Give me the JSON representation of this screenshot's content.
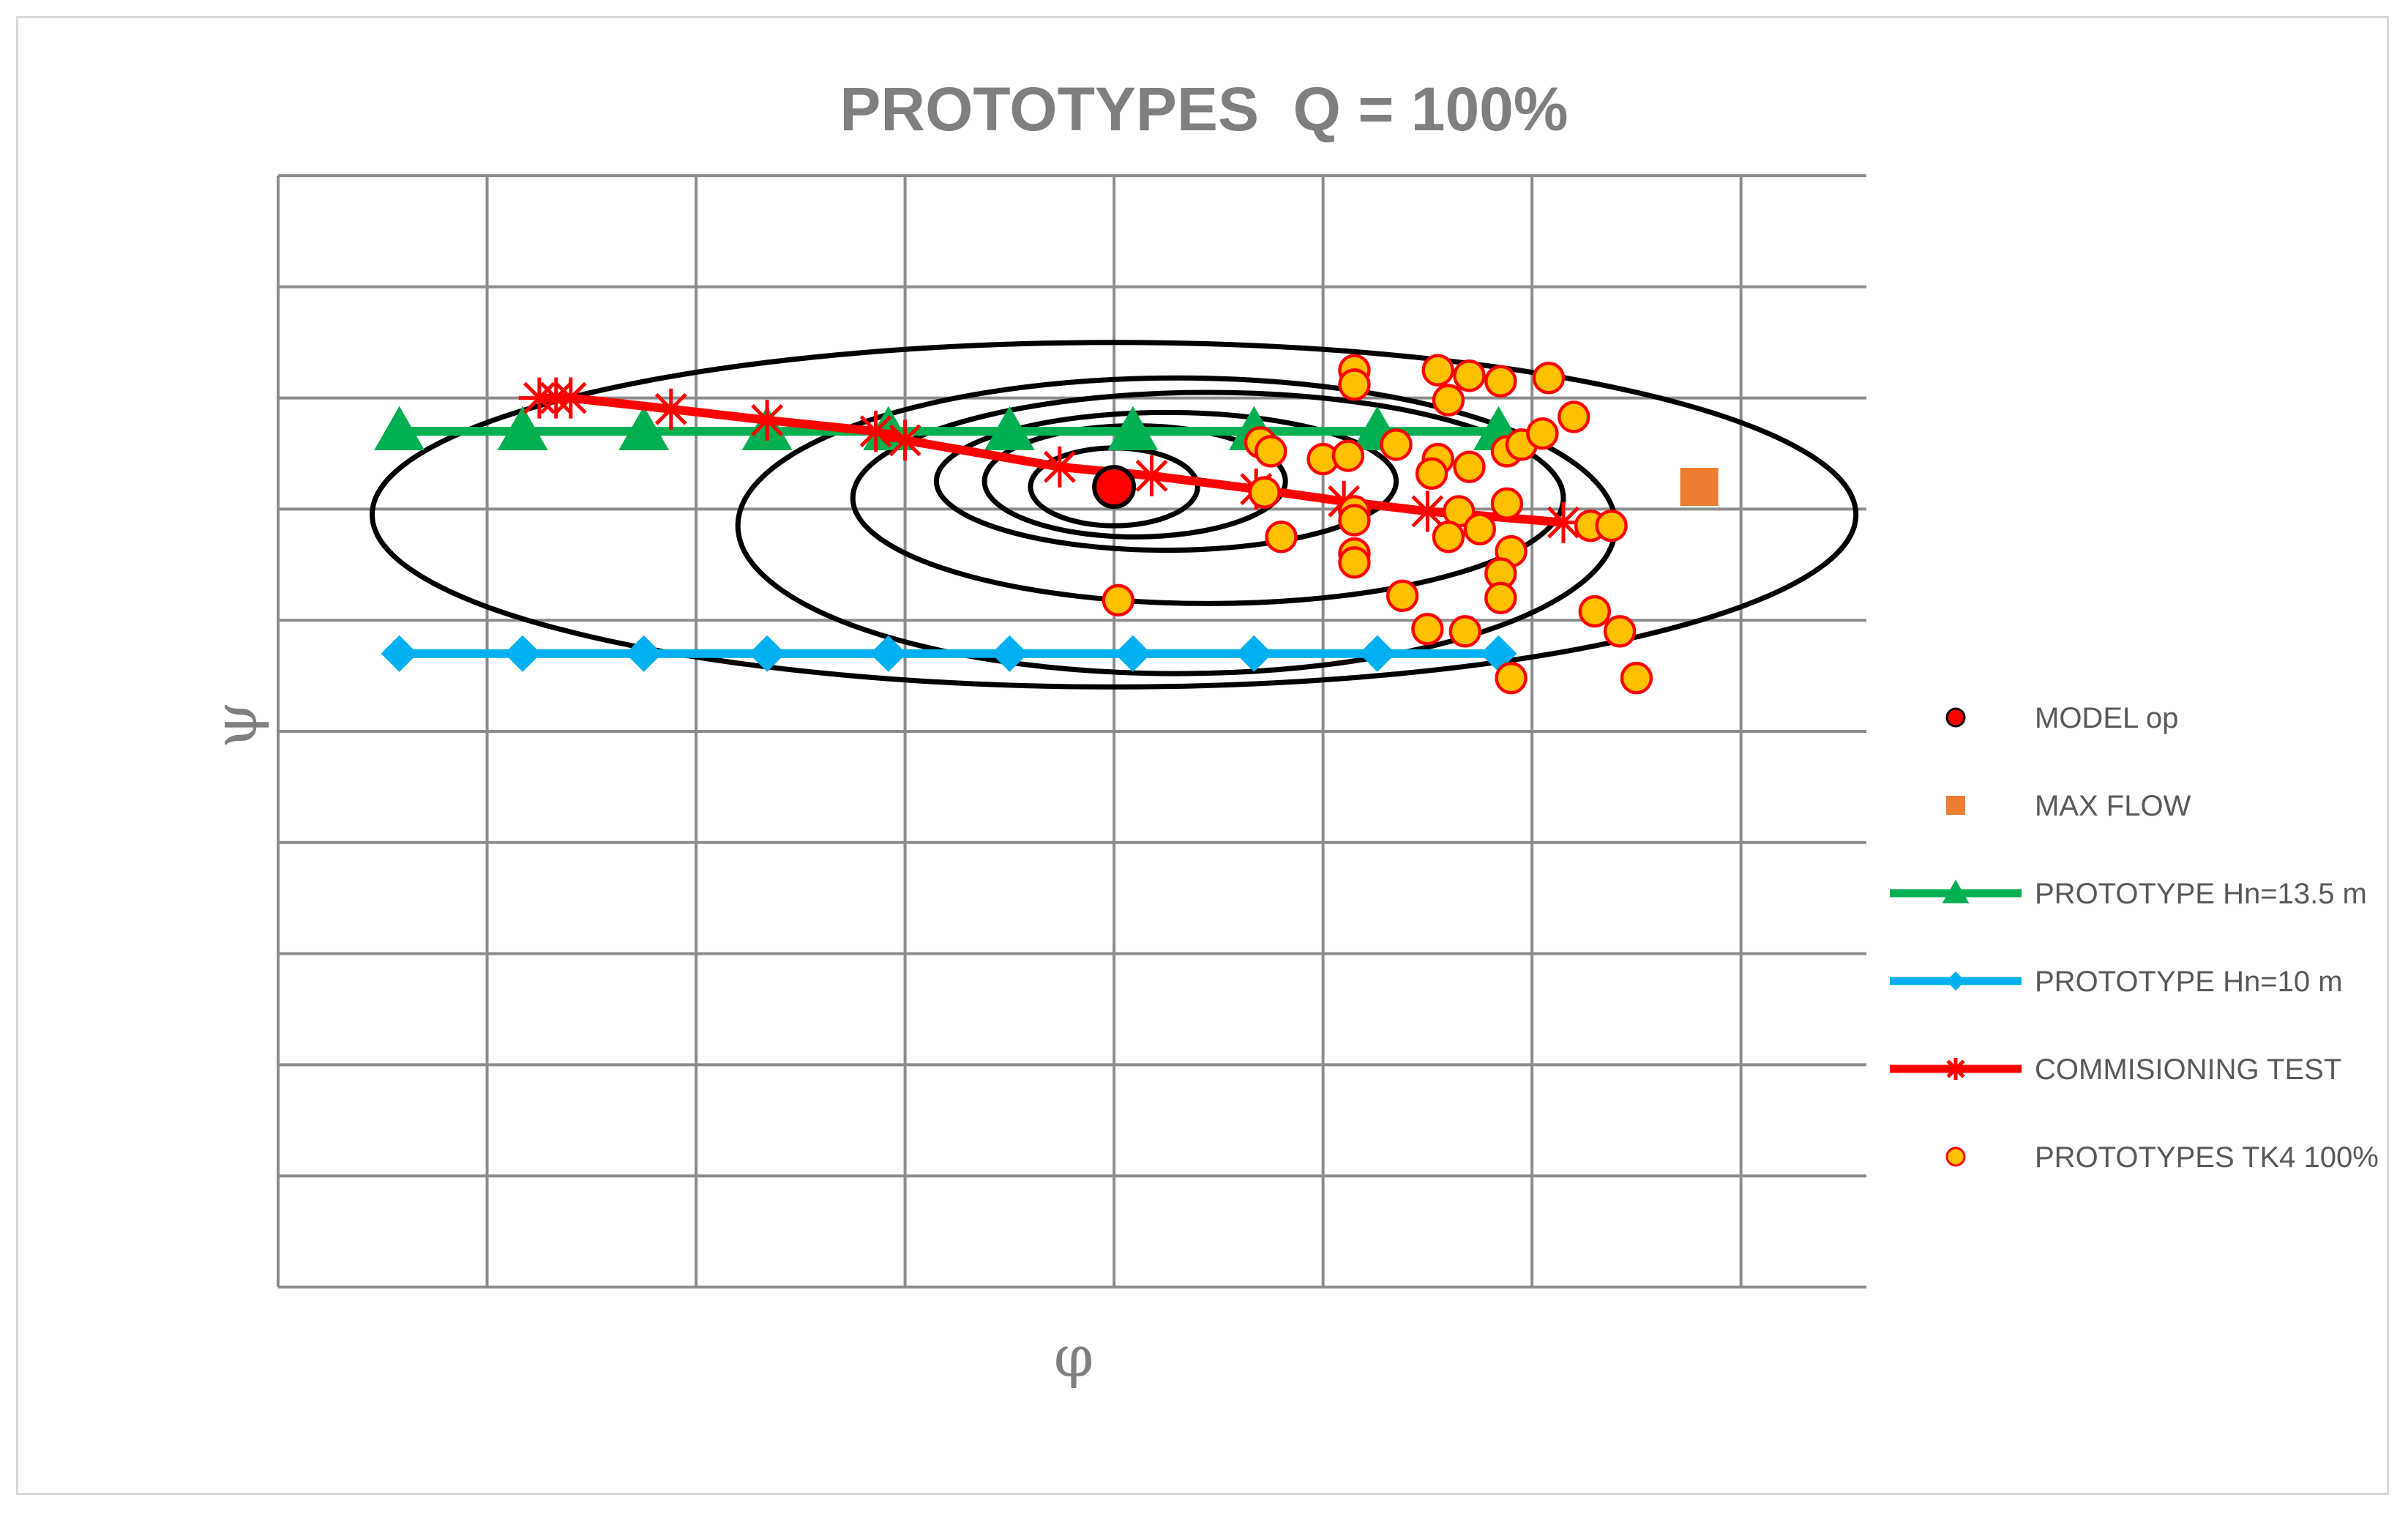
{
  "chart_data": {
    "type": "scatter",
    "title": "PROTOTYPES  Q = 100%",
    "xlabel": "φ",
    "ylabel": "ψ",
    "xlim": [
      0,
      7.6
    ],
    "ylim": [
      0,
      10
    ],
    "grid": true,
    "tick_labels_shown": false,
    "legend_position": "right",
    "series": [
      {
        "name": "MODEL op",
        "kind": "marker",
        "marker": "circle",
        "color": "#ff0000",
        "stroke": "#000000",
        "points": [
          [
            4.0,
            7.2
          ]
        ]
      },
      {
        "name": "MAX FLOW",
        "kind": "marker",
        "marker": "square",
        "color": "#ed7d31",
        "points": [
          [
            6.8,
            7.2
          ]
        ]
      },
      {
        "name": "PROTOTYPE Hn=13.5 m",
        "kind": "line",
        "marker": "triangle",
        "color": "#00b050",
        "points": [
          [
            0.58,
            7.7
          ],
          [
            1.17,
            7.7
          ],
          [
            1.75,
            7.7
          ],
          [
            2.34,
            7.7
          ],
          [
            2.92,
            7.7
          ],
          [
            3.5,
            7.7
          ],
          [
            4.09,
            7.7
          ],
          [
            4.67,
            7.7
          ],
          [
            5.26,
            7.7
          ],
          [
            5.84,
            7.7
          ]
        ]
      },
      {
        "name": "PROTOTYPE Hn=10 m",
        "kind": "line",
        "marker": "diamond",
        "color": "#00b0f0",
        "points": [
          [
            0.58,
            5.7
          ],
          [
            1.17,
            5.7
          ],
          [
            1.75,
            5.7
          ],
          [
            2.34,
            5.7
          ],
          [
            2.92,
            5.7
          ],
          [
            3.5,
            5.7
          ],
          [
            4.09,
            5.7
          ],
          [
            4.67,
            5.7
          ],
          [
            5.26,
            5.7
          ],
          [
            5.84,
            5.7
          ]
        ]
      },
      {
        "name": "COMMISIONING TEST",
        "kind": "line",
        "marker": "star",
        "color": "#ff0000",
        "points": [
          [
            1.25,
            8.0
          ],
          [
            1.33,
            8.0
          ],
          [
            1.4,
            8.0
          ],
          [
            1.88,
            7.9
          ],
          [
            2.34,
            7.8
          ],
          [
            2.86,
            7.7
          ],
          [
            3.0,
            7.62
          ],
          [
            3.74,
            7.38
          ],
          [
            4.18,
            7.3
          ],
          [
            4.68,
            7.18
          ],
          [
            5.1,
            7.07
          ],
          [
            5.5,
            6.98
          ],
          [
            6.15,
            6.88
          ]
        ]
      },
      {
        "name": "PROTOTYPES TK4 100%",
        "kind": "marker",
        "marker": "circle",
        "color": "#ffc000",
        "stroke": "#ff0000",
        "points": [
          [
            5.15,
            8.25
          ],
          [
            5.15,
            8.12
          ],
          [
            5.55,
            8.25
          ],
          [
            5.7,
            8.2
          ],
          [
            5.85,
            8.15
          ],
          [
            6.08,
            8.18
          ],
          [
            5.6,
            7.98
          ],
          [
            6.2,
            7.83
          ],
          [
            4.7,
            7.6
          ],
          [
            4.75,
            7.52
          ],
          [
            5.35,
            7.58
          ],
          [
            5.0,
            7.45
          ],
          [
            5.12,
            7.48
          ],
          [
            5.55,
            7.45
          ],
          [
            5.7,
            7.38
          ],
          [
            5.52,
            7.32
          ],
          [
            5.88,
            7.52
          ],
          [
            5.95,
            7.58
          ],
          [
            6.05,
            7.68
          ],
          [
            4.72,
            7.15
          ],
          [
            5.88,
            7.05
          ],
          [
            5.65,
            6.98
          ],
          [
            5.15,
            6.98
          ],
          [
            5.15,
            6.9
          ],
          [
            5.75,
            6.82
          ],
          [
            5.6,
            6.75
          ],
          [
            6.28,
            6.85
          ],
          [
            6.38,
            6.85
          ],
          [
            4.8,
            6.75
          ],
          [
            5.15,
            6.6
          ],
          [
            5.15,
            6.52
          ],
          [
            5.9,
            6.62
          ],
          [
            5.85,
            6.42
          ],
          [
            5.38,
            6.22
          ],
          [
            5.85,
            6.2
          ],
          [
            4.02,
            6.18
          ],
          [
            6.3,
            6.08
          ],
          [
            5.5,
            5.92
          ],
          [
            5.68,
            5.9
          ],
          [
            6.42,
            5.9
          ],
          [
            5.9,
            5.48
          ],
          [
            6.5,
            5.48
          ]
        ]
      }
    ],
    "annotations": {
      "ellipses_shown": true,
      "ellipse_center": [
        4.0,
        7.2
      ],
      "ellipse_count": 6
    }
  }
}
